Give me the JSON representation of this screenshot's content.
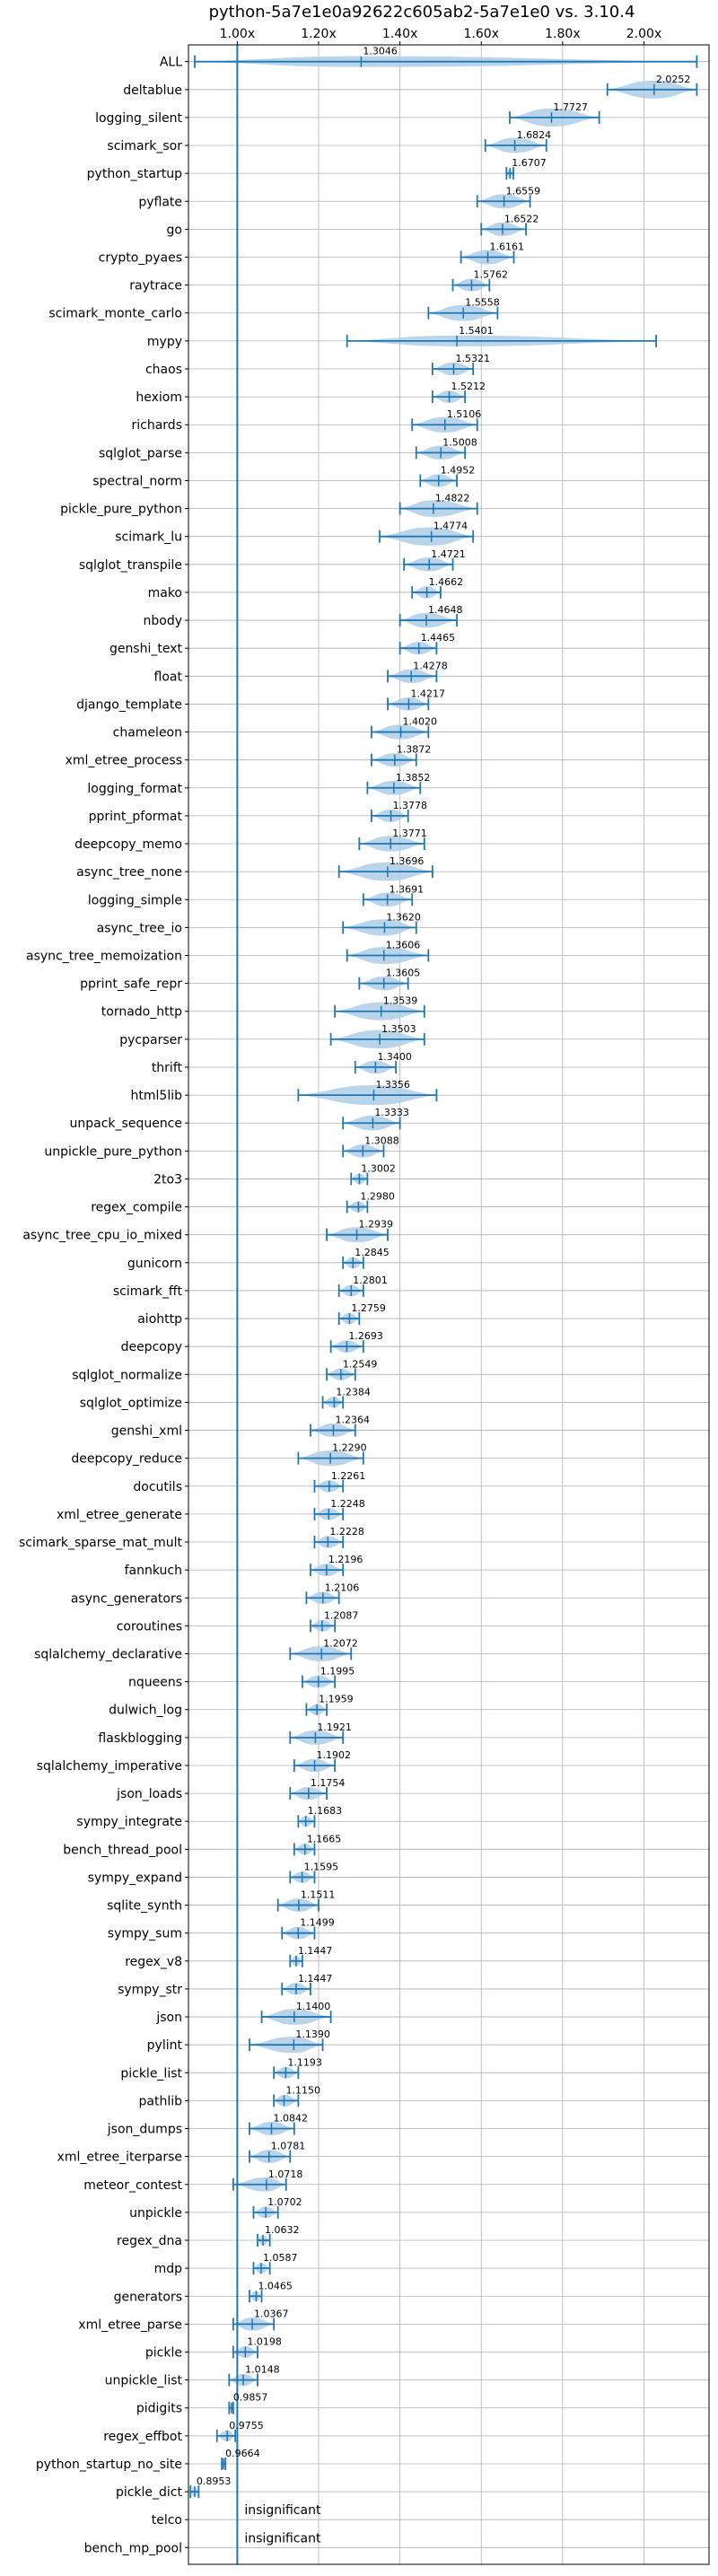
{
  "chart_data": {
    "type": "violin",
    "title": "python-5a7e1e0a92622c605ab2-5a7e1e0 vs. 3.10.4",
    "xlabel": "",
    "ylabel": "",
    "xlim": [
      0.88,
      2.16
    ],
    "x_ticks": [
      {
        "value": 1.0,
        "label": "1.00x"
      },
      {
        "value": 1.2,
        "label": "1.20x"
      },
      {
        "value": 1.4,
        "label": "1.40x"
      },
      {
        "value": 1.6,
        "label": "1.60x"
      },
      {
        "value": 1.8,
        "label": "1.80x"
      },
      {
        "value": 2.0,
        "label": "2.00x"
      }
    ],
    "reference_line": 1.0,
    "grid": true,
    "colors": {
      "line": "#1f77b4",
      "fill": "#aecde6",
      "grid": "#b0b0b0"
    },
    "benchmarks": [
      {
        "name": "ALL",
        "mean": 1.3046,
        "min": 0.8953,
        "max": 2.13,
        "label": "1.3046"
      },
      {
        "name": "deltablue",
        "mean": 2.0252,
        "min": 1.91,
        "max": 2.13,
        "label": "2.0252"
      },
      {
        "name": "logging_silent",
        "mean": 1.7727,
        "min": 1.67,
        "max": 1.89,
        "label": "1.7727"
      },
      {
        "name": "scimark_sor",
        "mean": 1.6824,
        "min": 1.61,
        "max": 1.76,
        "label": "1.6824"
      },
      {
        "name": "python_startup",
        "mean": 1.6707,
        "min": 1.662,
        "max": 1.679,
        "label": "1.6707"
      },
      {
        "name": "pyflate",
        "mean": 1.6559,
        "min": 1.59,
        "max": 1.72,
        "label": "1.6559"
      },
      {
        "name": "go",
        "mean": 1.6522,
        "min": 1.6,
        "max": 1.71,
        "label": "1.6522"
      },
      {
        "name": "crypto_pyaes",
        "mean": 1.6161,
        "min": 1.55,
        "max": 1.68,
        "label": "1.6161"
      },
      {
        "name": "raytrace",
        "mean": 1.5762,
        "min": 1.53,
        "max": 1.62,
        "label": "1.5762"
      },
      {
        "name": "scimark_monte_carlo",
        "mean": 1.5558,
        "min": 1.47,
        "max": 1.64,
        "label": "1.5558"
      },
      {
        "name": "mypy",
        "mean": 1.5401,
        "min": 1.27,
        "max": 2.03,
        "label": "1.5401"
      },
      {
        "name": "chaos",
        "mean": 1.5321,
        "min": 1.48,
        "max": 1.58,
        "label": "1.5321"
      },
      {
        "name": "hexiom",
        "mean": 1.5212,
        "min": 1.48,
        "max": 1.56,
        "label": "1.5212"
      },
      {
        "name": "richards",
        "mean": 1.5106,
        "min": 1.43,
        "max": 1.59,
        "label": "1.5106"
      },
      {
        "name": "sqlglot_parse",
        "mean": 1.5008,
        "min": 1.44,
        "max": 1.56,
        "label": "1.5008"
      },
      {
        "name": "spectral_norm",
        "mean": 1.4952,
        "min": 1.45,
        "max": 1.54,
        "label": "1.4952"
      },
      {
        "name": "pickle_pure_python",
        "mean": 1.4822,
        "min": 1.4,
        "max": 1.59,
        "label": "1.4822"
      },
      {
        "name": "scimark_lu",
        "mean": 1.4774,
        "min": 1.35,
        "max": 1.58,
        "label": "1.4774"
      },
      {
        "name": "sqlglot_transpile",
        "mean": 1.4721,
        "min": 1.41,
        "max": 1.53,
        "label": "1.4721"
      },
      {
        "name": "mako",
        "mean": 1.4662,
        "min": 1.43,
        "max": 1.5,
        "label": "1.4662"
      },
      {
        "name": "nbody",
        "mean": 1.4648,
        "min": 1.4,
        "max": 1.54,
        "label": "1.4648"
      },
      {
        "name": "genshi_text",
        "mean": 1.4465,
        "min": 1.4,
        "max": 1.49,
        "label": "1.4465"
      },
      {
        "name": "float",
        "mean": 1.4278,
        "min": 1.37,
        "max": 1.49,
        "label": "1.4278"
      },
      {
        "name": "django_template",
        "mean": 1.4217,
        "min": 1.37,
        "max": 1.47,
        "label": "1.4217"
      },
      {
        "name": "chameleon",
        "mean": 1.402,
        "min": 1.33,
        "max": 1.47,
        "label": "1.4020"
      },
      {
        "name": "xml_etree_process",
        "mean": 1.3872,
        "min": 1.33,
        "max": 1.44,
        "label": "1.3872"
      },
      {
        "name": "logging_format",
        "mean": 1.3852,
        "min": 1.32,
        "max": 1.45,
        "label": "1.3852"
      },
      {
        "name": "pprint_pformat",
        "mean": 1.3778,
        "min": 1.33,
        "max": 1.42,
        "label": "1.3778"
      },
      {
        "name": "deepcopy_memo",
        "mean": 1.3771,
        "min": 1.3,
        "max": 1.46,
        "label": "1.3771"
      },
      {
        "name": "async_tree_none",
        "mean": 1.3696,
        "min": 1.25,
        "max": 1.48,
        "label": "1.3696"
      },
      {
        "name": "logging_simple",
        "mean": 1.3691,
        "min": 1.31,
        "max": 1.43,
        "label": "1.3691"
      },
      {
        "name": "async_tree_io",
        "mean": 1.362,
        "min": 1.26,
        "max": 1.44,
        "label": "1.3620"
      },
      {
        "name": "async_tree_memoization",
        "mean": 1.3606,
        "min": 1.27,
        "max": 1.47,
        "label": "1.3606"
      },
      {
        "name": "pprint_safe_repr",
        "mean": 1.3605,
        "min": 1.3,
        "max": 1.42,
        "label": "1.3605"
      },
      {
        "name": "tornado_http",
        "mean": 1.3539,
        "min": 1.24,
        "max": 1.46,
        "label": "1.3539"
      },
      {
        "name": "pycparser",
        "mean": 1.3503,
        "min": 1.23,
        "max": 1.46,
        "label": "1.3503"
      },
      {
        "name": "thrift",
        "mean": 1.34,
        "min": 1.29,
        "max": 1.39,
        "label": "1.3400"
      },
      {
        "name": "html5lib",
        "mean": 1.3356,
        "min": 1.15,
        "max": 1.49,
        "label": "1.3356"
      },
      {
        "name": "unpack_sequence",
        "mean": 1.3333,
        "min": 1.26,
        "max": 1.4,
        "label": "1.3333"
      },
      {
        "name": "unpickle_pure_python",
        "mean": 1.3088,
        "min": 1.26,
        "max": 1.36,
        "label": "1.3088"
      },
      {
        "name": "2to3",
        "mean": 1.3002,
        "min": 1.28,
        "max": 1.32,
        "label": "1.3002"
      },
      {
        "name": "regex_compile",
        "mean": 1.298,
        "min": 1.27,
        "max": 1.32,
        "label": "1.2980"
      },
      {
        "name": "async_tree_cpu_io_mixed",
        "mean": 1.2939,
        "min": 1.22,
        "max": 1.37,
        "label": "1.2939"
      },
      {
        "name": "gunicorn",
        "mean": 1.2845,
        "min": 1.26,
        "max": 1.31,
        "label": "1.2845"
      },
      {
        "name": "scimark_fft",
        "mean": 1.2801,
        "min": 1.25,
        "max": 1.31,
        "label": "1.2801"
      },
      {
        "name": "aiohttp",
        "mean": 1.2759,
        "min": 1.25,
        "max": 1.3,
        "label": "1.2759"
      },
      {
        "name": "deepcopy",
        "mean": 1.2693,
        "min": 1.23,
        "max": 1.31,
        "label": "1.2693"
      },
      {
        "name": "sqlglot_normalize",
        "mean": 1.2549,
        "min": 1.22,
        "max": 1.29,
        "label": "1.2549"
      },
      {
        "name": "sqlglot_optimize",
        "mean": 1.2384,
        "min": 1.21,
        "max": 1.26,
        "label": "1.2384"
      },
      {
        "name": "genshi_xml",
        "mean": 1.2364,
        "min": 1.18,
        "max": 1.29,
        "label": "1.2364"
      },
      {
        "name": "deepcopy_reduce",
        "mean": 1.229,
        "min": 1.15,
        "max": 1.31,
        "label": "1.2290"
      },
      {
        "name": "docutils",
        "mean": 1.2261,
        "min": 1.19,
        "max": 1.26,
        "label": "1.2261"
      },
      {
        "name": "xml_etree_generate",
        "mean": 1.2248,
        "min": 1.19,
        "max": 1.26,
        "label": "1.2248"
      },
      {
        "name": "scimark_sparse_mat_mult",
        "mean": 1.2228,
        "min": 1.19,
        "max": 1.26,
        "label": "1.2228"
      },
      {
        "name": "fannkuch",
        "mean": 1.2196,
        "min": 1.18,
        "max": 1.26,
        "label": "1.2196"
      },
      {
        "name": "async_generators",
        "mean": 1.2106,
        "min": 1.17,
        "max": 1.25,
        "label": "1.2106"
      },
      {
        "name": "coroutines",
        "mean": 1.2087,
        "min": 1.18,
        "max": 1.24,
        "label": "1.2087"
      },
      {
        "name": "sqlalchemy_declarative",
        "mean": 1.2072,
        "min": 1.13,
        "max": 1.28,
        "label": "1.2072"
      },
      {
        "name": "nqueens",
        "mean": 1.1995,
        "min": 1.16,
        "max": 1.24,
        "label": "1.1995"
      },
      {
        "name": "dulwich_log",
        "mean": 1.1959,
        "min": 1.17,
        "max": 1.22,
        "label": "1.1959"
      },
      {
        "name": "flaskblogging",
        "mean": 1.1921,
        "min": 1.13,
        "max": 1.26,
        "label": "1.1921"
      },
      {
        "name": "sqlalchemy_imperative",
        "mean": 1.1902,
        "min": 1.14,
        "max": 1.24,
        "label": "1.1902"
      },
      {
        "name": "json_loads",
        "mean": 1.1754,
        "min": 1.13,
        "max": 1.22,
        "label": "1.1754"
      },
      {
        "name": "sympy_integrate",
        "mean": 1.1683,
        "min": 1.15,
        "max": 1.19,
        "label": "1.1683"
      },
      {
        "name": "bench_thread_pool",
        "mean": 1.1665,
        "min": 1.14,
        "max": 1.19,
        "label": "1.1665"
      },
      {
        "name": "sympy_expand",
        "mean": 1.1595,
        "min": 1.13,
        "max": 1.19,
        "label": "1.1595"
      },
      {
        "name": "sqlite_synth",
        "mean": 1.1511,
        "min": 1.1,
        "max": 1.2,
        "label": "1.1511"
      },
      {
        "name": "sympy_sum",
        "mean": 1.1499,
        "min": 1.11,
        "max": 1.19,
        "label": "1.1499"
      },
      {
        "name": "regex_v8",
        "mean": 1.1447,
        "min": 1.13,
        "max": 1.16,
        "label": "1.1447"
      },
      {
        "name": "sympy_str",
        "mean": 1.1447,
        "min": 1.11,
        "max": 1.18,
        "label": "1.1447"
      },
      {
        "name": "json",
        "mean": 1.14,
        "min": 1.06,
        "max": 1.23,
        "label": "1.1400"
      },
      {
        "name": "pylint",
        "mean": 1.139,
        "min": 1.03,
        "max": 1.21,
        "label": "1.1390"
      },
      {
        "name": "pickle_list",
        "mean": 1.1193,
        "min": 1.09,
        "max": 1.15,
        "label": "1.1193"
      },
      {
        "name": "pathlib",
        "mean": 1.115,
        "min": 1.09,
        "max": 1.15,
        "label": "1.1150"
      },
      {
        "name": "json_dumps",
        "mean": 1.0842,
        "min": 1.03,
        "max": 1.14,
        "label": "1.0842"
      },
      {
        "name": "xml_etree_iterparse",
        "mean": 1.0781,
        "min": 1.03,
        "max": 1.13,
        "label": "1.0781"
      },
      {
        "name": "meteor_contest",
        "mean": 1.0718,
        "min": 0.99,
        "max": 1.12,
        "label": "1.0718"
      },
      {
        "name": "unpickle",
        "mean": 1.0702,
        "min": 1.04,
        "max": 1.1,
        "label": "1.0702"
      },
      {
        "name": "regex_dna",
        "mean": 1.0632,
        "min": 1.05,
        "max": 1.08,
        "label": "1.0632"
      },
      {
        "name": "mdp",
        "mean": 1.0587,
        "min": 1.04,
        "max": 1.08,
        "label": "1.0587"
      },
      {
        "name": "generators",
        "mean": 1.0465,
        "min": 1.03,
        "max": 1.06,
        "label": "1.0465"
      },
      {
        "name": "xml_etree_parse",
        "mean": 1.0367,
        "min": 0.99,
        "max": 1.09,
        "label": "1.0367"
      },
      {
        "name": "pickle",
        "mean": 1.0198,
        "min": 0.99,
        "max": 1.05,
        "label": "1.0198"
      },
      {
        "name": "unpickle_list",
        "mean": 1.0148,
        "min": 0.98,
        "max": 1.05,
        "label": "1.0148"
      },
      {
        "name": "pidigits",
        "mean": 0.9857,
        "min": 0.98,
        "max": 0.99,
        "label": "0.9857"
      },
      {
        "name": "regex_effbot",
        "mean": 0.9755,
        "min": 0.95,
        "max": 0.995,
        "label": "0.9755"
      },
      {
        "name": "python_startup_no_site",
        "mean": 0.9664,
        "min": 0.962,
        "max": 0.971,
        "label": "0.9664"
      },
      {
        "name": "pickle_dict",
        "mean": 0.8953,
        "min": 0.885,
        "max": 0.905,
        "label": "0.8953"
      },
      {
        "name": "telco",
        "note": "insignificant"
      },
      {
        "name": "bench_mp_pool",
        "note": "insignificant"
      }
    ]
  }
}
